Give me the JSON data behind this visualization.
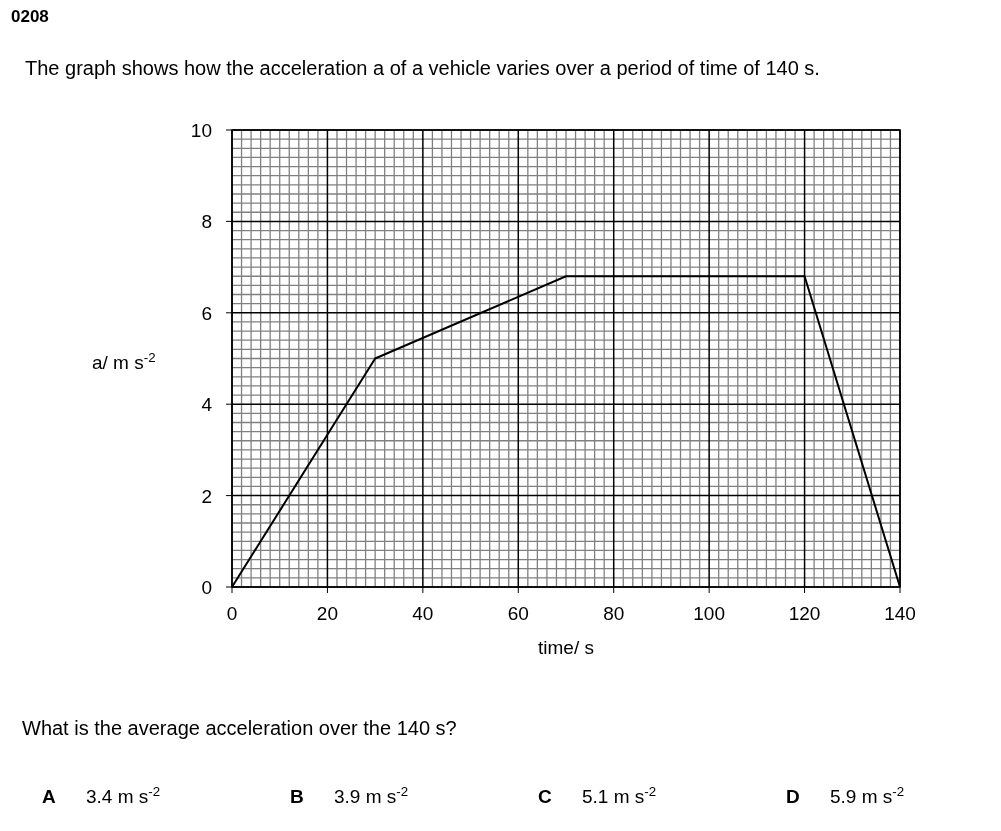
{
  "chart_data": {
    "type": "line",
    "title": "0208",
    "subtitle": "The graph shows how the acceleration a of a vehicle varies over a period of time of 140 s.",
    "xlabel": "time/ s",
    "ylabel": "a/ m s$^{-2}$",
    "x": [
      0,
      30,
      70,
      120,
      140
    ],
    "series": [
      {
        "color": "#000000",
        "values": [
          0,
          5,
          6.8,
          6.8,
          0
        ]
      }
    ],
    "xlim": [
      0,
      140
    ],
    "xticks": [
      0,
      20,
      40,
      60,
      80,
      100,
      120,
      140
    ],
    "ylim": [
      0,
      10
    ],
    "yticks": [
      0,
      2,
      4,
      6,
      8,
      10
    ],
    "grid": true,
    "marker": "none",
    "line_style": "solid",
    "annotations": [
      "What is the average acceleration over the 140 s?",
      "A",
      "3.4 m s$^{-2}$",
      "B",
      "3.9 m s$^{-2}$",
      "C",
      "5.1 m s$^{-2}$",
      "D",
      "5.9 m s$^{-2}$"
    ]
  }
}
